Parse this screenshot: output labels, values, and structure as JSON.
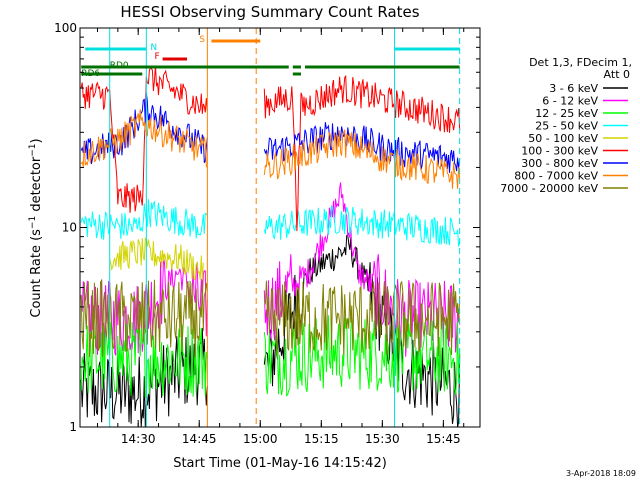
{
  "chart_data": {
    "type": "line",
    "title": "HESSI Observing Summary Count Rates",
    "xlabel": "Start Time (01-May-16 14:15:42)",
    "ylabel": "Count Rate (s⁻¹ detector⁻¹)",
    "y_scale": "log",
    "ylim": [
      1,
      100
    ],
    "xlim": [
      "14:15:42",
      "15:54:00"
    ],
    "x_ticks": [
      "14:30",
      "14:45",
      "15:00",
      "15:15",
      "15:30",
      "15:45"
    ],
    "y_ticks": [
      "1",
      "10",
      "100"
    ],
    "legend_header": [
      "Det 1,3, FDecim 1,",
      "Att 0"
    ],
    "legend_position": "right",
    "footer_date": "3-Apr-2018 18:09",
    "flags": [
      {
        "label": "N",
        "color": "#00e0e0",
        "segments": [
          [
            "14:17",
            "14:32"
          ],
          [
            "15:33",
            "15:49"
          ]
        ]
      },
      {
        "label": "F",
        "color": "#e00000",
        "segments": [
          [
            "14:36",
            "14:42"
          ]
        ]
      },
      {
        "label": "S",
        "color": "#ff8000",
        "segments": [
          [
            "14:48",
            "15:00"
          ]
        ]
      },
      {
        "label": "RD0",
        "color": "#007000",
        "segments": [
          [
            "14:16",
            "15:07"
          ],
          [
            "15:08",
            "15:10"
          ],
          [
            "15:11",
            "15:49"
          ]
        ]
      },
      {
        "label": "RD6",
        "color": "#007000",
        "segments": [
          [
            "14:16",
            "14:31"
          ],
          [
            "15:08",
            "15:10"
          ]
        ]
      }
    ],
    "vlines": [
      {
        "time": "14:23",
        "color": "#00e0e0",
        "style": "solid"
      },
      {
        "time": "14:32",
        "color": "#00e0e0",
        "style": "solid"
      },
      {
        "time": "14:47",
        "color": "#ff8000",
        "style": "solid"
      },
      {
        "time": "14:59",
        "color": "#ff8000",
        "style": "dashed"
      },
      {
        "time": "15:33",
        "color": "#00e0e0",
        "style": "solid"
      },
      {
        "time": "15:49",
        "color": "#00e0e0",
        "style": "dashed"
      }
    ],
    "gap": [
      "14:47",
      "15:01"
    ],
    "series": [
      {
        "name": "3 - 6 keV",
        "color": "#000000",
        "points": [
          [
            "14:16",
            1.5
          ],
          [
            "14:30",
            1.5
          ],
          [
            "14:44",
            2.0
          ],
          [
            "15:02",
            2.0
          ],
          [
            "15:12",
            6.0
          ],
          [
            "15:22",
            8.0
          ],
          [
            "15:35",
            2.0
          ],
          [
            "15:49",
            1.5
          ]
        ]
      },
      {
        "name": "6 - 12 keV",
        "color": "#ff00ff",
        "points": [
          [
            "14:16",
            3.5
          ],
          [
            "14:30",
            3.5
          ],
          [
            "14:40",
            6.0
          ],
          [
            "14:46",
            4.0
          ],
          [
            "15:02",
            4.0
          ],
          [
            "15:12",
            6.0
          ],
          [
            "15:20",
            15.0
          ],
          [
            "15:24",
            6.0
          ],
          [
            "15:35",
            3.5
          ],
          [
            "15:49",
            3.5
          ]
        ]
      },
      {
        "name": "12 - 25 keV",
        "color": "#00ff00",
        "points": [
          [
            "14:16",
            2.2
          ],
          [
            "14:30",
            2.2
          ],
          [
            "14:46",
            2.2
          ],
          [
            "15:02",
            2.2
          ],
          [
            "15:20",
            2.4
          ],
          [
            "15:49",
            2.2
          ]
        ]
      },
      {
        "name": "25 - 50 keV",
        "color": "#00ffff",
        "points": [
          [
            "14:16",
            10.5
          ],
          [
            "14:30",
            10.0
          ],
          [
            "14:32",
            12.0
          ],
          [
            "14:46",
            10.0
          ],
          [
            "15:02",
            10.0
          ],
          [
            "15:20",
            11.0
          ],
          [
            "15:49",
            9.5
          ]
        ]
      },
      {
        "name": "50 - 100 keV",
        "color": "#d4d400",
        "points": [
          [
            "14:23",
            7.0
          ],
          [
            "14:30",
            7.5
          ],
          [
            "14:40",
            7.0
          ],
          [
            "14:46",
            6.0
          ]
        ]
      },
      {
        "name": "100 - 300 keV",
        "color": "#ff0000",
        "points": [
          [
            "14:16",
            47
          ],
          [
            "14:23",
            46
          ],
          [
            "14:25",
            14
          ],
          [
            "14:31",
            14
          ],
          [
            "14:32",
            58
          ],
          [
            "14:46",
            40
          ],
          [
            "15:02",
            42
          ],
          [
            "15:08",
            45
          ],
          [
            "15:09",
            11
          ],
          [
            "15:10",
            40
          ],
          [
            "15:20",
            50
          ],
          [
            "15:33",
            42
          ],
          [
            "15:49",
            34
          ]
        ]
      },
      {
        "name": "300 - 800 keV",
        "color": "#0000ff",
        "points": [
          [
            "14:16",
            23
          ],
          [
            "14:26",
            27
          ],
          [
            "14:30",
            35
          ],
          [
            "14:32",
            40
          ],
          [
            "14:46",
            25
          ],
          [
            "15:02",
            24
          ],
          [
            "15:20",
            30
          ],
          [
            "15:33",
            24
          ],
          [
            "15:49",
            22
          ]
        ]
      },
      {
        "name": "800 - 7000 keV",
        "color": "#ff8000",
        "points": [
          [
            "14:16",
            23
          ],
          [
            "14:26",
            28
          ],
          [
            "14:30",
            33
          ],
          [
            "14:32",
            33
          ],
          [
            "14:46",
            24
          ],
          [
            "15:02",
            20
          ],
          [
            "15:20",
            27
          ],
          [
            "15:33",
            21
          ],
          [
            "15:49",
            18
          ]
        ]
      },
      {
        "name": "7000 - 20000 keV",
        "color": "#808000",
        "points": [
          [
            "14:16",
            3.5
          ],
          [
            "14:30",
            3.5
          ],
          [
            "14:46",
            3.5
          ],
          [
            "15:02",
            3.5
          ],
          [
            "15:49",
            3.5
          ]
        ]
      }
    ]
  }
}
